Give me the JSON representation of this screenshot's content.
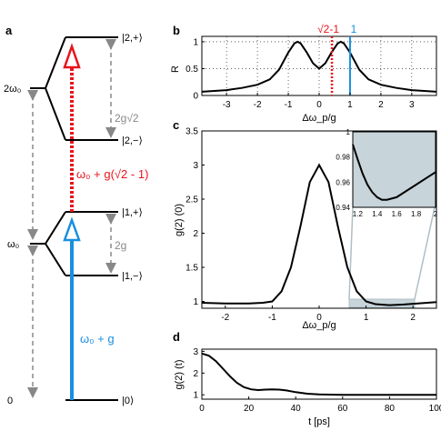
{
  "panels": {
    "a": {
      "label": "a",
      "left_labels": [
        "2ω₀",
        "ω₀",
        "0"
      ],
      "states": [
        "|2,+⟩",
        "|2,−⟩",
        "|1,+⟩",
        "|1,−⟩",
        "|0⟩"
      ],
      "splitting_1": "2g",
      "splitting_2": "2g√2",
      "transition_red": "ω₀ + g(√2 - 1)",
      "transition_blue": "ω₀ + g",
      "colors": {
        "red": "#e8141c",
        "blue": "#1a8fe0",
        "grey": "#888888"
      }
    },
    "b": {
      "label": "b",
      "ylabel": "R",
      "xlabel": "Δω_p/g",
      "marker_red": "√2-1",
      "marker_blue": "1",
      "xticks": [
        "-3",
        "-2",
        "-1",
        "0",
        "1",
        "2",
        "3"
      ],
      "yticks": [
        "0",
        "0.5",
        "1"
      ]
    },
    "c": {
      "label": "c",
      "ylabel": "g(2) (0)",
      "xlabel": "Δω_p/g",
      "xticks": [
        "-2",
        "-1",
        "0",
        "1",
        "2"
      ],
      "yticks": [
        "1",
        "1.5",
        "2",
        "2.5",
        "3",
        "3.5"
      ],
      "inset_xticks": [
        "1.2",
        "1.4",
        "1.6",
        "1.8",
        "2"
      ],
      "inset_yticks": [
        "1",
        "0.98",
        "0.96",
        "0.94"
      ]
    },
    "d": {
      "label": "d",
      "ylabel": "g(2) (t)",
      "xlabel": "t  [ps]",
      "xticks": [
        "0",
        "20",
        "40",
        "60",
        "80",
        "100"
      ],
      "yticks": [
        "1",
        "2",
        "3"
      ]
    }
  },
  "chart_data": [
    {
      "type": "line",
      "panel": "b",
      "x": [
        -3.8,
        -3,
        -2.5,
        -2,
        -1.6,
        -1.3,
        -1.0,
        -0.8,
        -0.7,
        -0.6,
        -0.4,
        -0.2,
        0,
        0.2,
        0.4,
        0.6,
        0.7,
        0.8,
        1.0,
        1.3,
        1.6,
        2,
        2.5,
        3,
        3.8
      ],
      "y": [
        0.07,
        0.1,
        0.14,
        0.2,
        0.3,
        0.48,
        0.8,
        0.97,
        1.0,
        0.97,
        0.8,
        0.6,
        0.5,
        0.6,
        0.8,
        0.97,
        1.0,
        0.97,
        0.8,
        0.48,
        0.3,
        0.2,
        0.14,
        0.1,
        0.07
      ],
      "xlim": [
        -3.8,
        3.8
      ],
      "ylim": [
        0,
        1.1
      ],
      "vlines": [
        {
          "x": 0.414,
          "style": "dotted",
          "color": "red"
        },
        {
          "x": 1.0,
          "style": "solid",
          "color": "blue"
        }
      ],
      "grid": true
    },
    {
      "type": "line",
      "panel": "c",
      "x": [
        -2.5,
        -2.0,
        -1.5,
        -1.2,
        -1.0,
        -0.8,
        -0.6,
        -0.4,
        -0.2,
        0,
        0.2,
        0.4,
        0.6,
        0.8,
        1.0,
        1.2,
        1.5,
        1.8,
        2.0,
        2.5
      ],
      "y": [
        0.98,
        0.97,
        0.97,
        0.98,
        1.0,
        1.15,
        1.5,
        2.1,
        2.75,
        3.0,
        2.75,
        2.1,
        1.5,
        1.15,
        1.0,
        0.96,
        0.945,
        0.955,
        0.965,
        0.99
      ],
      "xlim": [
        -2.5,
        2.5
      ],
      "ylim": [
        0.9,
        3.5
      ]
    },
    {
      "type": "line",
      "panel": "c-inset",
      "x": [
        1.15,
        1.2,
        1.25,
        1.3,
        1.35,
        1.4,
        1.45,
        1.5,
        1.6,
        1.7,
        1.8,
        1.9,
        2.0
      ],
      "y": [
        0.99,
        0.978,
        0.967,
        0.958,
        0.952,
        0.948,
        0.946,
        0.946,
        0.948,
        0.953,
        0.958,
        0.963,
        0.968
      ],
      "xlim": [
        1.15,
        2.0
      ],
      "ylim": [
        0.94,
        1.0
      ]
    },
    {
      "type": "line",
      "panel": "d",
      "x": [
        0,
        3,
        6,
        9,
        12,
        15,
        18,
        21,
        24,
        27,
        30,
        33,
        36,
        40,
        45,
        50,
        55,
        60,
        70,
        80,
        90,
        100
      ],
      "y": [
        2.9,
        2.8,
        2.55,
        2.2,
        1.85,
        1.55,
        1.35,
        1.25,
        1.22,
        1.24,
        1.25,
        1.24,
        1.2,
        1.12,
        1.05,
        1.02,
        1.01,
        1.0,
        1.0,
        1.0,
        1.0,
        1.0
      ],
      "xlim": [
        0,
        100
      ],
      "ylim": [
        0.8,
        3.1
      ]
    }
  ]
}
